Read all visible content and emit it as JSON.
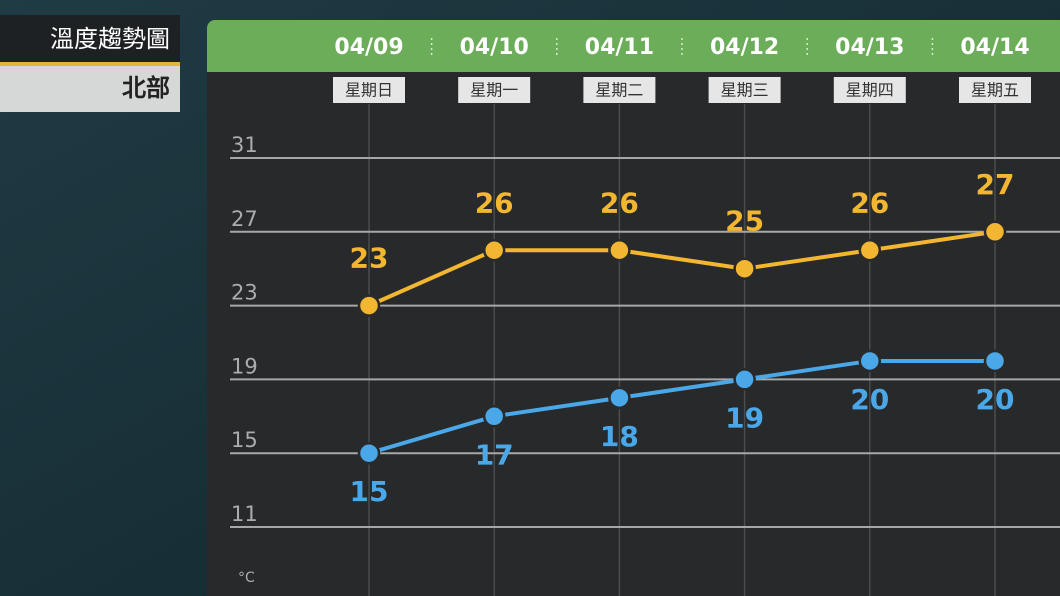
{
  "chart_data": {
    "type": "line",
    "title": "溫度趨勢圖",
    "subtitle": "北部",
    "unit": "°C",
    "categories": [
      "04/09",
      "04/10",
      "04/11",
      "04/12",
      "04/13",
      "04/14"
    ],
    "weekdays": [
      "星期日",
      "星期一",
      "星期二",
      "星期三",
      "星期四",
      "星期五"
    ],
    "series": [
      {
        "color": "#f2b630",
        "values": [
          23,
          26,
          26,
          25,
          26,
          27
        ],
        "label_position": "above"
      },
      {
        "color": "#4aa8e8",
        "values": [
          15,
          17,
          18,
          19,
          20,
          20
        ],
        "label_position": "below"
      }
    ],
    "ylim": [
      11,
      31
    ],
    "yticks": [
      11,
      15,
      19,
      23,
      27,
      31
    ],
    "grid": true
  }
}
